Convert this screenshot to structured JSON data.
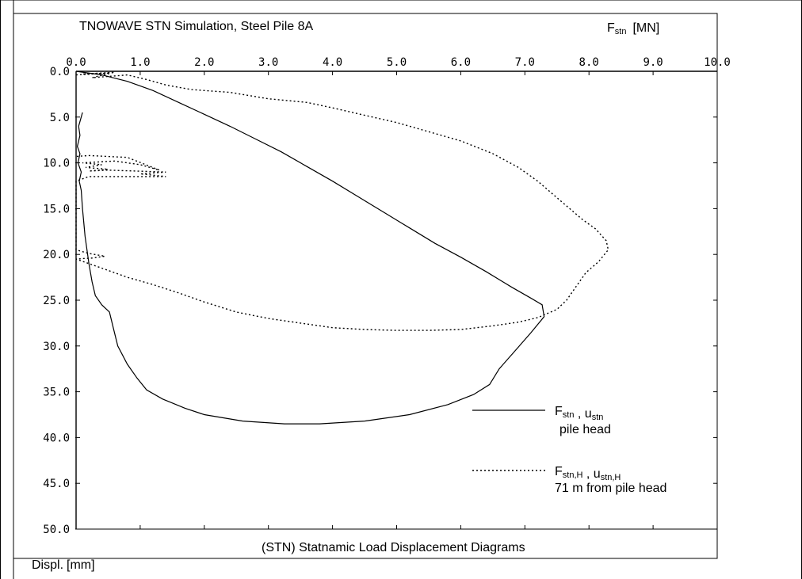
{
  "chart_data": {
    "type": "line",
    "title": "TNOWAVE STN Simulation, Steel Pile 8A",
    "subtitle": "(STN) Statnamic Load Displacement Diagrams",
    "xlabel": {
      "main": "F",
      "sub": "stn",
      "unit": "[MN]"
    },
    "ylabel": {
      "main": "Displ.",
      "unit": "[mm]"
    },
    "xlim": [
      0,
      10
    ],
    "ylim": [
      0,
      50
    ],
    "y_inverted": true,
    "grid": false,
    "x_ticks": [
      "0.0",
      "1.0",
      "2.0",
      "3.0",
      "4.0",
      "5.0",
      "6.0",
      "7.0",
      "8.0",
      "9.0",
      "10.0"
    ],
    "y_ticks": [
      "0.0",
      "5.0",
      "10.0",
      "15.0",
      "20.0",
      "25.0",
      "30.0",
      "35.0",
      "40.0",
      "45.0",
      "50.0"
    ],
    "legend_position": "bottom-right",
    "series": [
      {
        "style": "solid",
        "legend": {
          "line1": [
            {
              "t": "F"
            },
            {
              "t": "stn",
              "sub": true
            },
            {
              "t": " , u"
            },
            {
              "t": "stn",
              "sub": true
            }
          ],
          "line2": "pile head"
        },
        "points": [
          [
            0.0,
            0.0
          ],
          [
            0.4,
            0.4
          ],
          [
            0.8,
            1.1
          ],
          [
            1.2,
            2.1
          ],
          [
            1.6,
            3.4
          ],
          [
            2.0,
            4.7
          ],
          [
            2.4,
            6.0
          ],
          [
            2.8,
            7.4
          ],
          [
            3.2,
            8.8
          ],
          [
            3.6,
            10.4
          ],
          [
            4.0,
            12.0
          ],
          [
            4.4,
            13.7
          ],
          [
            4.8,
            15.4
          ],
          [
            5.2,
            17.1
          ],
          [
            5.6,
            18.8
          ],
          [
            6.0,
            20.3
          ],
          [
            6.4,
            21.9
          ],
          [
            6.8,
            23.6
          ],
          [
            7.1,
            24.8
          ],
          [
            7.27,
            25.5
          ],
          [
            7.3,
            26.8
          ],
          [
            7.1,
            28.5
          ],
          [
            6.85,
            30.5
          ],
          [
            6.6,
            32.5
          ],
          [
            6.45,
            34.2
          ],
          [
            6.2,
            35.3
          ],
          [
            5.8,
            36.4
          ],
          [
            5.2,
            37.5
          ],
          [
            4.5,
            38.2
          ],
          [
            3.8,
            38.5
          ],
          [
            3.25,
            38.5
          ],
          [
            2.6,
            38.2
          ],
          [
            2.0,
            37.5
          ],
          [
            1.7,
            36.8
          ],
          [
            1.35,
            35.8
          ],
          [
            1.1,
            34.8
          ],
          [
            0.95,
            33.5
          ],
          [
            0.8,
            32.0
          ],
          [
            0.65,
            30.0
          ],
          [
            0.58,
            28.0
          ],
          [
            0.52,
            26.3
          ],
          [
            0.4,
            25.5
          ],
          [
            0.3,
            24.5
          ],
          [
            0.25,
            23.0
          ],
          [
            0.2,
            21.0
          ],
          [
            0.14,
            18.0
          ],
          [
            0.1,
            15.0
          ],
          [
            0.08,
            13.0
          ],
          [
            0.05,
            12.0
          ],
          [
            0.08,
            11.0
          ],
          [
            0.03,
            10.0
          ],
          [
            0.06,
            9.0
          ],
          [
            0.02,
            8.2
          ],
          [
            0.06,
            7.0
          ],
          [
            0.04,
            6.0
          ],
          [
            0.08,
            5.0
          ],
          [
            0.1,
            4.5
          ]
        ]
      },
      {
        "style": "dotted",
        "legend": {
          "line1": [
            {
              "t": "F"
            },
            {
              "t": "stn,H",
              "sub": true
            },
            {
              "t": " , u"
            },
            {
              "t": "stn,H",
              "sub": true
            }
          ],
          "line2": "71 m from pile head"
        },
        "points": [
          [
            0.0,
            0.4
          ],
          [
            0.5,
            0.2
          ],
          [
            0.1,
            0.3
          ],
          [
            0.6,
            0.1
          ],
          [
            0.25,
            0.7
          ],
          [
            0.8,
            0.4
          ],
          [
            1.1,
            0.9
          ],
          [
            1.4,
            1.5
          ],
          [
            1.8,
            2.0
          ],
          [
            2.4,
            2.3
          ],
          [
            3.0,
            3.0
          ],
          [
            3.6,
            3.4
          ],
          [
            4.0,
            4.0
          ],
          [
            4.5,
            4.8
          ],
          [
            5.0,
            5.6
          ],
          [
            5.5,
            6.6
          ],
          [
            6.0,
            7.6
          ],
          [
            6.5,
            9.0
          ],
          [
            6.9,
            10.5
          ],
          [
            7.2,
            12.0
          ],
          [
            7.45,
            13.5
          ],
          [
            7.7,
            15.0
          ],
          [
            7.9,
            16.2
          ],
          [
            8.1,
            17.2
          ],
          [
            8.27,
            18.5
          ],
          [
            8.3,
            19.5
          ],
          [
            8.15,
            20.8
          ],
          [
            7.95,
            22.0
          ],
          [
            7.8,
            23.5
          ],
          [
            7.65,
            25.0
          ],
          [
            7.5,
            26.0
          ],
          [
            7.2,
            26.9
          ],
          [
            6.9,
            27.4
          ],
          [
            6.5,
            27.8
          ],
          [
            6.0,
            28.2
          ],
          [
            5.5,
            28.3
          ],
          [
            5.0,
            28.3
          ],
          [
            4.5,
            28.2
          ],
          [
            4.0,
            28.0
          ],
          [
            3.5,
            27.5
          ],
          [
            3.0,
            27.0
          ],
          [
            2.5,
            26.3
          ],
          [
            2.0,
            25.2
          ],
          [
            1.6,
            24.2
          ],
          [
            1.2,
            23.3
          ],
          [
            0.8,
            22.5
          ],
          [
            0.4,
            21.5
          ],
          [
            0.2,
            21.0
          ],
          [
            0.0,
            20.5
          ],
          [
            0.25,
            20.4
          ],
          [
            0.45,
            20.2
          ],
          [
            0.2,
            19.9
          ],
          [
            0.0,
            19.5
          ],
          [
            0.0,
            12.0
          ],
          [
            0.2,
            11.5
          ],
          [
            0.7,
            11.5
          ],
          [
            1.4,
            11.5
          ],
          [
            1.0,
            11.2
          ],
          [
            1.4,
            11.0
          ],
          [
            0.5,
            10.8
          ],
          [
            0.2,
            10.9
          ],
          [
            0.5,
            10.7
          ],
          [
            0.15,
            10.5
          ],
          [
            0.4,
            10.2
          ],
          [
            0.1,
            10.0
          ],
          [
            0.6,
            9.8
          ],
          [
            1.0,
            10.2
          ],
          [
            1.3,
            10.8
          ],
          [
            0.8,
            9.4
          ],
          [
            0.2,
            9.2
          ],
          [
            0.0,
            9.3
          ]
        ]
      }
    ]
  }
}
